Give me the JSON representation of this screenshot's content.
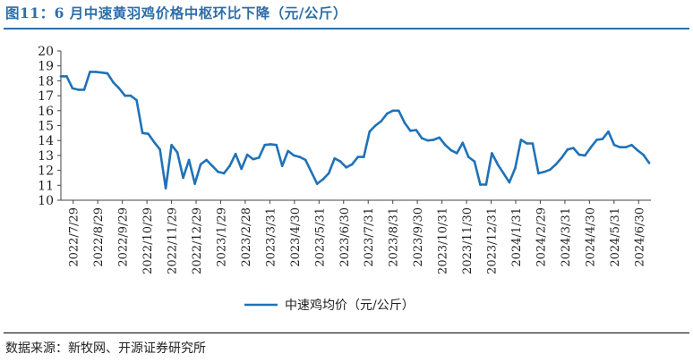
{
  "header": {
    "title": "图11：6 月中速黄羽鸡价格中枢环比下降（元/公斤）"
  },
  "footer": {
    "source": "数据来源：新牧网、开源证券研究所"
  },
  "chart_data": {
    "type": "line",
    "title": "图11：6 月中速黄羽鸡价格中枢环比下降（元/公斤）",
    "xlabel": "",
    "ylabel": "",
    "ylim": [
      10,
      20
    ],
    "yticks": [
      10,
      11,
      12,
      13,
      14,
      15,
      16,
      17,
      18,
      19,
      20
    ],
    "x_tick_labels": [
      "2022/7/29",
      "2022/8/29",
      "2022/9/29",
      "2022/10/29",
      "2022/11/29",
      "2022/12/29",
      "2023/1/29",
      "2023/2/28",
      "2023/3/31",
      "2023/4/30",
      "2023/5/31",
      "2023/6/30",
      "2023/7/31",
      "2023/8/31",
      "2023/9/30",
      "2023/10/31",
      "2023/11/30",
      "2023/12/31",
      "2024/1/31",
      "2024/2/29",
      "2024/3/31",
      "2024/4/30",
      "2024/5/31",
      "2024/6/30"
    ],
    "legend_position": "bottom",
    "grid": false,
    "colors": {
      "series": "#1f72b8"
    },
    "series": [
      {
        "name": "中速鸡均价（元/公斤）",
        "values": [
          18.3,
          18.3,
          17.5,
          17.4,
          17.4,
          18.6,
          18.6,
          18.55,
          18.5,
          17.9,
          17.5,
          17.0,
          17.0,
          16.7,
          14.5,
          14.45,
          13.9,
          13.4,
          10.8,
          13.7,
          13.2,
          11.5,
          12.7,
          11.1,
          12.4,
          12.7,
          12.3,
          11.9,
          11.8,
          12.3,
          13.1,
          12.1,
          13.05,
          12.75,
          12.85,
          13.7,
          13.75,
          13.7,
          12.3,
          13.3,
          13.0,
          12.9,
          12.7,
          11.9,
          11.1,
          11.4,
          11.8,
          12.8,
          12.6,
          12.2,
          12.4,
          12.9,
          12.9,
          14.6,
          15.0,
          15.3,
          15.8,
          16.0,
          16.0,
          15.2,
          14.65,
          14.7,
          14.15,
          14.0,
          14.05,
          14.2,
          13.7,
          13.35,
          13.15,
          13.85,
          12.9,
          12.6,
          11.05,
          11.05,
          13.15,
          12.4,
          11.8,
          11.2,
          12.15,
          14.05,
          13.8,
          13.8,
          11.8,
          11.9,
          12.05,
          12.4,
          12.85,
          13.4,
          13.5,
          13.05,
          13.0,
          13.55,
          14.05,
          14.1,
          14.6,
          13.7,
          13.55,
          13.55,
          13.7,
          13.35,
          13.05,
          12.5
        ]
      }
    ]
  }
}
